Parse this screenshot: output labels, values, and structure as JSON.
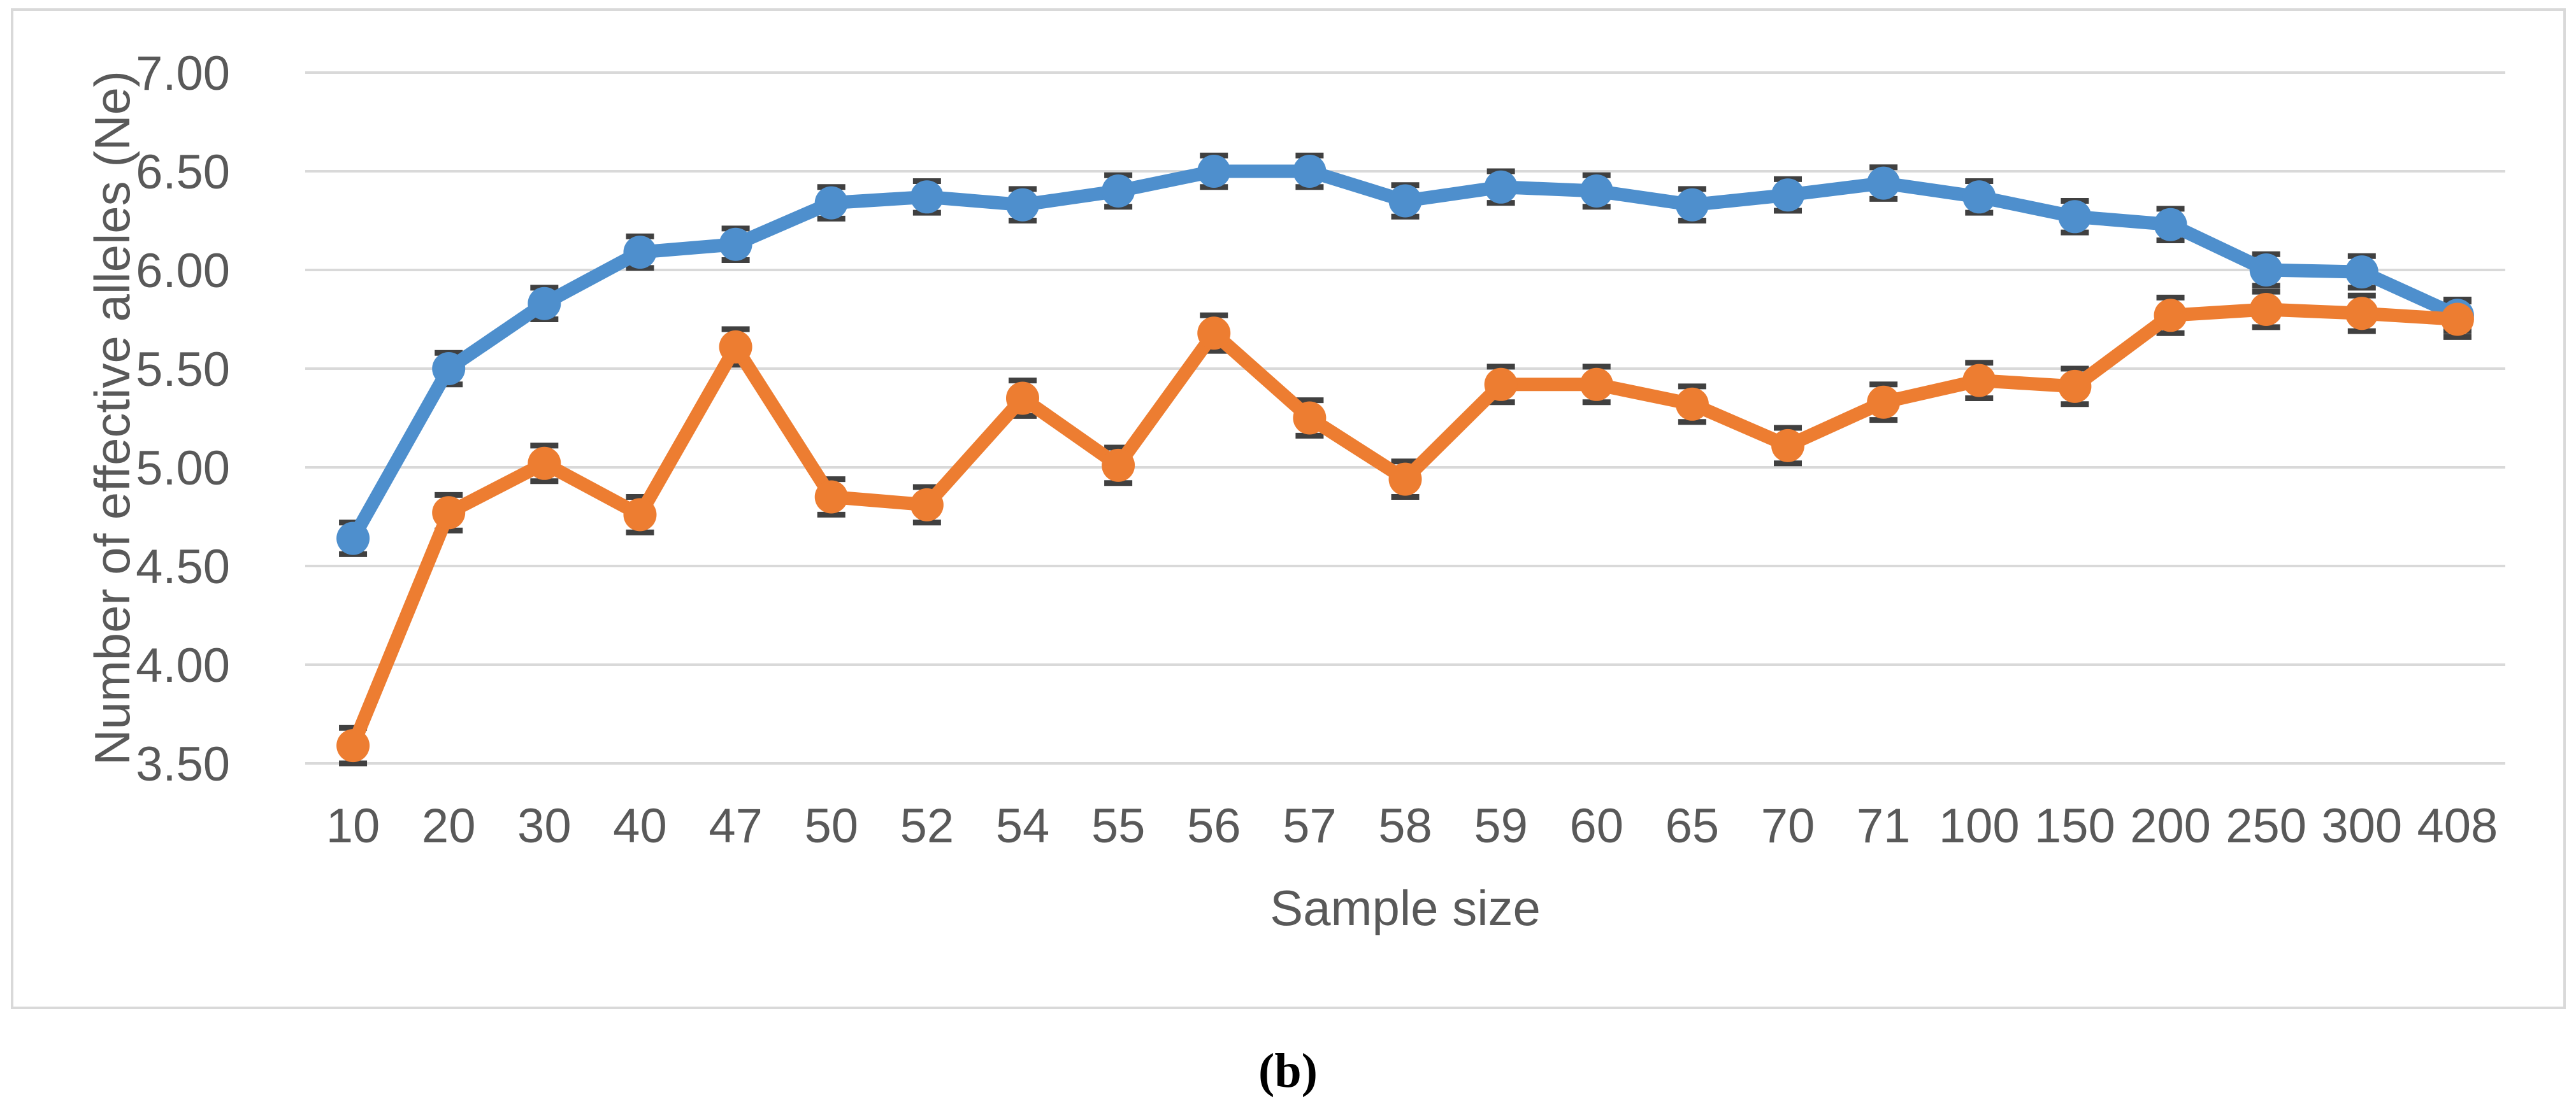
{
  "caption": {
    "label": "(b)"
  },
  "style": {
    "panel_border_color": "#D9D9D9",
    "gridline_color": "#D9D9D9",
    "tick_text_color": "#595959",
    "axis_title_color": "#595959",
    "errorbar_color": "#404040",
    "background": "#ffffff"
  },
  "chart_data": {
    "type": "line",
    "title": "",
    "xlabel": "Sample size",
    "ylabel": "Number of effective alleles (Ne)",
    "categories": [
      "10",
      "20",
      "30",
      "40",
      "47",
      "50",
      "52",
      "54",
      "55",
      "56",
      "57",
      "58",
      "59",
      "60",
      "65",
      "70",
      "71",
      "100",
      "150",
      "200",
      "250",
      "300",
      "408"
    ],
    "ylim": [
      3.5,
      7.0
    ],
    "grid": true,
    "legend_position": "none",
    "yticks": [
      {
        "label": "7.00",
        "value": 7.0
      },
      {
        "label": "6.50",
        "value": 6.5
      },
      {
        "label": "6.00",
        "value": 6.0
      },
      {
        "label": "5.50",
        "value": 5.5
      },
      {
        "label": "5.00",
        "value": 5.0
      },
      {
        "label": "4.50",
        "value": 4.5
      },
      {
        "label": "4.00",
        "value": 4.0
      },
      {
        "label": "3.50",
        "value": 3.5
      }
    ],
    "series": [
      {
        "name": "blue-series",
        "color": "#4E8FCD",
        "error": 0.08,
        "values": [
          4.64,
          5.5,
          5.83,
          6.09,
          6.13,
          6.34,
          6.37,
          6.33,
          6.4,
          6.5,
          6.5,
          6.35,
          6.42,
          6.4,
          6.33,
          6.38,
          6.44,
          6.37,
          6.27,
          6.23,
          6.0,
          5.99,
          5.77
        ]
      },
      {
        "name": "orange-series",
        "color": "#ED7D31",
        "error": 0.09,
        "values": [
          3.59,
          4.77,
          5.02,
          4.76,
          5.61,
          4.85,
          4.81,
          5.35,
          5.01,
          5.68,
          5.25,
          4.94,
          5.42,
          5.42,
          5.32,
          5.11,
          5.33,
          5.44,
          5.41,
          5.77,
          5.8,
          5.78,
          5.75
        ]
      }
    ]
  }
}
